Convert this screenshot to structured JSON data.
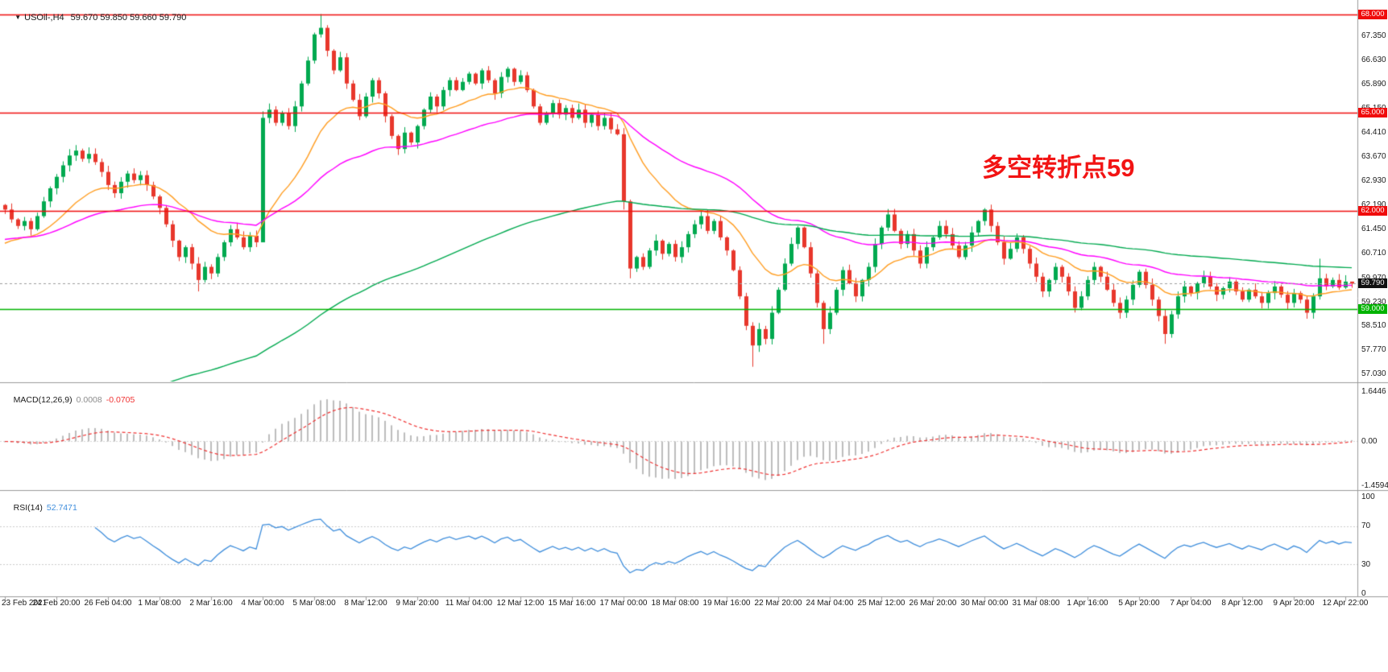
{
  "header": {
    "symbol_period": "USOil-,H4",
    "ohlc": "59.670 59.850 59.660 59.790"
  },
  "annotation": {
    "text": "多空转折点59",
    "color": "#f21414"
  },
  "palette": {
    "axis_text": "#1a1a1a",
    "separator": "#9a9a9a",
    "bid_line": "#9e9e9e",
    "bid_tag_bg": "#101010"
  },
  "levels": [
    {
      "v": 68.0,
      "label": "68.000",
      "color": "#f00c0c",
      "dash": false
    },
    {
      "v": 65.0,
      "label": "65.000",
      "color": "#f00c0c",
      "dash": false
    },
    {
      "v": 62.0,
      "label": "62.000",
      "color": "#f00c0c",
      "dash": false
    },
    {
      "v": 59.0,
      "label": "59.000",
      "color": "#00b300",
      "dash": false
    },
    {
      "v": 59.79,
      "label": "59.790",
      "color": "#101010",
      "line_color": "#9e9e9e",
      "dash": true
    }
  ],
  "price_axis": {
    "ticks": [
      {
        "v": 67.35,
        "label": "67.350"
      },
      {
        "v": 66.63,
        "label": "66.630"
      },
      {
        "v": 65.89,
        "label": "65.890"
      },
      {
        "v": 65.15,
        "label": "65.150"
      },
      {
        "v": 64.41,
        "label": "64.410"
      },
      {
        "v": 63.67,
        "label": "63.670"
      },
      {
        "v": 62.93,
        "label": "62.930"
      },
      {
        "v": 62.19,
        "label": "62.190"
      },
      {
        "v": 61.45,
        "label": "61.450"
      },
      {
        "v": 60.71,
        "label": "60.710"
      },
      {
        "v": 59.97,
        "label": "59.970"
      },
      {
        "v": 59.23,
        "label": "59.230"
      },
      {
        "v": 58.51,
        "label": "58.510"
      },
      {
        "v": 57.77,
        "label": "57.770"
      },
      {
        "v": 57.03,
        "label": "57.030"
      }
    ]
  },
  "time_axis": {
    "labels": [
      "23 Feb 2021",
      "24 Feb 20:00",
      "26 Feb 04:00",
      "1 Mar 08:00",
      "2 Mar 16:00",
      "4 Mar 00:00",
      "5 Mar 08:00",
      "8 Mar 12:00",
      "9 Mar 20:00",
      "11 Mar 04:00",
      "12 Mar 12:00",
      "15 Mar 16:00",
      "17 Mar 00:00",
      "18 Mar 08:00",
      "19 Mar 16:00",
      "22 Mar 20:00",
      "24 Mar 04:00",
      "25 Mar 12:00",
      "26 Mar 20:00",
      "30 Mar 00:00",
      "31 Mar 08:00",
      "1 Apr 16:00",
      "5 Apr 20:00",
      "7 Apr 04:00",
      "8 Apr 12:00",
      "9 Apr 20:00",
      "12 Apr 22:00"
    ],
    "candles_per_label": 8
  },
  "chart_data": [
    {
      "type": "candlestick",
      "symbol": "USOil-,H4",
      "title": "USOil-,H4",
      "current_candle": {
        "open": 59.67,
        "high": 59.85,
        "low": 59.66,
        "close": 59.79
      },
      "ylim": [
        56.8,
        68.45
      ],
      "colors": {
        "up": "#00a94f",
        "down": "#e8372c"
      },
      "first_open": 62.19,
      "closes": [
        62.05,
        61.75,
        61.55,
        61.7,
        61.45,
        61.85,
        62.3,
        62.7,
        63.05,
        63.4,
        63.7,
        63.85,
        63.6,
        63.75,
        63.5,
        63.2,
        62.8,
        62.55,
        62.9,
        63.15,
        62.95,
        63.1,
        62.8,
        62.45,
        62.1,
        61.6,
        61.1,
        60.6,
        60.9,
        60.4,
        59.9,
        60.3,
        60.1,
        60.6,
        61.05,
        61.45,
        61.2,
        60.9,
        61.25,
        61.05,
        64.85,
        65.1,
        64.7,
        65.0,
        64.6,
        65.2,
        65.9,
        66.6,
        67.4,
        67.6,
        66.9,
        66.3,
        66.7,
        65.9,
        65.4,
        64.9,
        65.5,
        66.0,
        65.6,
        64.9,
        64.3,
        63.9,
        64.4,
        64.1,
        64.6,
        65.1,
        65.5,
        65.2,
        65.7,
        66.0,
        65.7,
        65.95,
        66.2,
        65.9,
        66.3,
        66.0,
        65.6,
        66.1,
        66.35,
        65.95,
        66.15,
        65.7,
        65.2,
        64.7,
        65.0,
        65.3,
        64.95,
        65.15,
        64.85,
        65.1,
        64.7,
        64.95,
        64.6,
        64.85,
        64.5,
        64.35,
        62.3,
        60.25,
        60.6,
        60.3,
        60.8,
        61.1,
        60.7,
        61.0,
        60.6,
        60.9,
        61.3,
        61.6,
        61.85,
        61.4,
        61.7,
        61.2,
        60.8,
        60.2,
        59.4,
        58.5,
        57.9,
        58.4,
        58.1,
        58.9,
        59.6,
        60.4,
        61.0,
        61.5,
        60.9,
        60.1,
        59.2,
        58.4,
        58.9,
        59.6,
        60.2,
        59.8,
        59.4,
        59.9,
        60.3,
        61.0,
        61.5,
        61.9,
        61.4,
        61.0,
        61.3,
        60.8,
        60.4,
        60.9,
        61.2,
        61.55,
        61.3,
        60.95,
        60.6,
        60.95,
        61.35,
        61.7,
        62.05,
        61.55,
        61.05,
        60.55,
        60.85,
        61.2,
        60.85,
        60.4,
        60.0,
        59.55,
        59.9,
        60.3,
        60.0,
        59.55,
        59.05,
        59.4,
        59.9,
        60.3,
        60.0,
        59.6,
        59.2,
        58.9,
        59.3,
        59.75,
        60.15,
        59.75,
        59.3,
        58.8,
        58.25,
        58.85,
        59.4,
        59.7,
        59.5,
        59.8,
        60.0,
        59.7,
        59.45,
        59.65,
        59.85,
        59.55,
        59.3,
        59.6,
        59.4,
        59.2,
        59.5,
        59.7,
        59.45,
        59.2,
        59.5,
        59.3,
        58.9,
        59.4,
        59.95,
        59.7,
        59.9,
        59.67,
        59.85,
        59.79
      ],
      "wick_overrides": {
        "30": {
          "l": 59.55
        },
        "40": {
          "l": 61.15,
          "h": 65.05
        },
        "49": {
          "h": 68.02
        },
        "96": {
          "l": 62.05
        },
        "97": {
          "l": 59.95
        },
        "116": {
          "l": 57.25
        },
        "127": {
          "l": 57.95
        },
        "180": {
          "l": 57.95
        },
        "204": {
          "h": 60.55
        },
        "209": {
          "h": 59.85,
          "l": 59.66
        }
      },
      "moving_averages": [
        {
          "name": "ma-fast",
          "color": "#ff9d20",
          "period": 18,
          "seed": 60.9
        },
        {
          "name": "ma-mid",
          "color": "#ff00ff",
          "period": 48,
          "seed": 61.1
        },
        {
          "name": "ma-slow",
          "color": "#00a94f",
          "period": 120,
          "seed": 53.5
        }
      ],
      "horizontal_levels": [
        68.0,
        65.0,
        62.0,
        59.0
      ],
      "bid_price": 59.79
    },
    {
      "type": "bar",
      "name": "MACD(12,26,9)",
      "current_macd": "0.0008",
      "current_signal": "-0.0705",
      "source": "chart_data.0.closes",
      "ylim": [
        -1.59,
        1.91
      ],
      "ticks": [
        {
          "v": 1.6446,
          "label": "1.6446"
        },
        {
          "v": 0,
          "label": "0.00"
        },
        {
          "v": -1.4594,
          "label": "-1.4594"
        }
      ],
      "histogram_color": "#bdbdbd",
      "value_color": "#8c8c8c",
      "signal_color": "#f03333"
    },
    {
      "type": "line",
      "name": "RSI(14)",
      "current": "52.7471",
      "period": 14,
      "source": "chart_data.0.closes",
      "ylim": [
        0,
        100
      ],
      "ticks": [
        {
          "v": 100,
          "label": "100"
        },
        {
          "v": 70,
          "label": "70"
        },
        {
          "v": 30,
          "label": "30"
        },
        {
          "v": 0,
          "label": "0"
        }
      ],
      "guide_levels": [
        70,
        30
      ],
      "line_color": "#3f8edc"
    }
  ]
}
